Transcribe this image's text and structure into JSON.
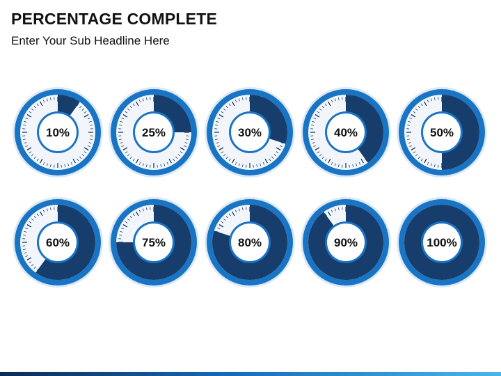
{
  "header": {
    "title": "PERCENTAGE COMPLETE",
    "subtitle": "Enter Your Sub Headline Here"
  },
  "colors": {
    "outer_ring": "#1a74c4",
    "outer_ring_edge": "#dbe9f7",
    "fill": "#163d6b",
    "dial_face": "#f2f6fb",
    "tick": "#163d6b",
    "center_border": "#1a74c4",
    "center": "#ffffff",
    "label": "#111111"
  },
  "gauges": [
    {
      "value": 10,
      "label": "10%"
    },
    {
      "value": 25,
      "label": "25%"
    },
    {
      "value": 30,
      "label": "30%"
    },
    {
      "value": 40,
      "label": "40%"
    },
    {
      "value": 50,
      "label": "50%"
    },
    {
      "value": 60,
      "label": "60%"
    },
    {
      "value": 75,
      "label": "75%"
    },
    {
      "value": 80,
      "label": "80%"
    },
    {
      "value": 90,
      "label": "90%"
    },
    {
      "value": 100,
      "label": "100%"
    }
  ]
}
